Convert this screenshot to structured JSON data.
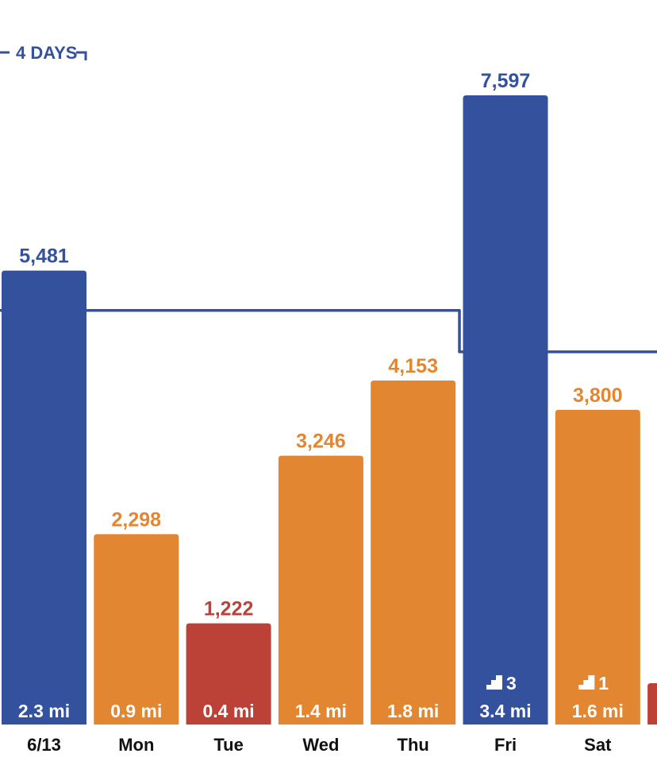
{
  "chart_data": {
    "type": "bar",
    "categories": [
      "6/13",
      "Mon",
      "Tue",
      "Wed",
      "Thu",
      "Fri",
      "Sat"
    ],
    "values": [
      5481,
      2298,
      1222,
      3246,
      4153,
      7597,
      3800
    ],
    "value_labels": [
      "5,481",
      "2,298",
      "1,222",
      "3,246",
      "4,153",
      "7,597",
      "3,800"
    ],
    "distance_labels": [
      "2.3 mi",
      "0.9 mi",
      "0.4 mi",
      "1.4 mi",
      "1.8 mi",
      "3.4 mi",
      "1.6 mi"
    ],
    "floor_counts": [
      null,
      null,
      null,
      null,
      null,
      "3",
      "1"
    ],
    "bar_status": [
      "goal",
      "partial",
      "low",
      "partial",
      "partial",
      "goal",
      "partial"
    ],
    "goal_steps": [
      5000,
      5000,
      5000,
      5000,
      5000,
      4500,
      4500,
      4500
    ],
    "streak_label": "4 DAYS",
    "ylim": [
      0,
      8000
    ],
    "grid": false,
    "colors": {
      "goal": "#34519e",
      "partial": "#e28632",
      "low": "#bc4238",
      "goal_line": "#34519e",
      "label_goal": "#34519e",
      "label_partial": "#e28632",
      "label_low": "#bc4238"
    },
    "icons": {
      "floors": "stairs-icon"
    },
    "partial_next_bar_status": "low"
  }
}
